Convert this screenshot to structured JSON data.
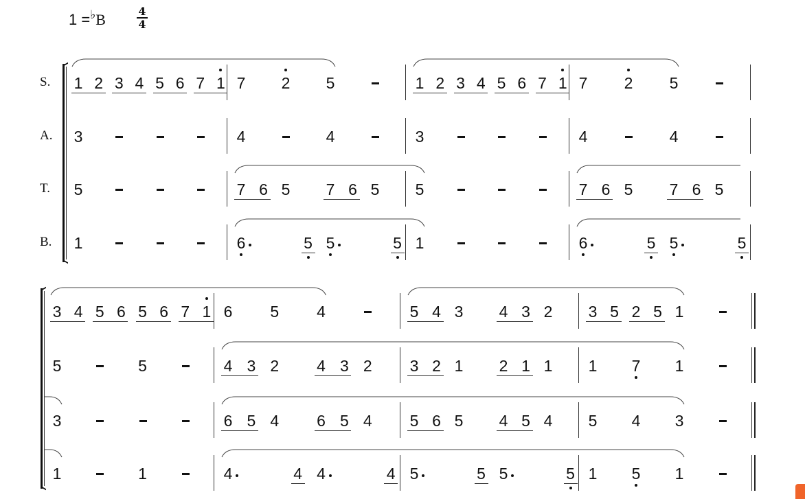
{
  "header": {
    "key_prefix": "1 =",
    "key_flat": "♭",
    "key_note": "B",
    "time_top": "4",
    "time_bottom": "4"
  },
  "parts": [
    "S.",
    "A.",
    "T.",
    "B."
  ],
  "systems": [
    {
      "measures": [
        {
          "S": [
            {
              "t": 0,
              "n": "1",
              "u": 1
            },
            {
              "t": 0.5,
              "n": "2",
              "u": 1
            },
            {
              "t": 1,
              "n": "3",
              "u": 1
            },
            {
              "t": 1.5,
              "n": "4",
              "u": 1
            },
            {
              "t": 2,
              "n": "5",
              "u": 1
            },
            {
              "t": 2.5,
              "n": "6",
              "u": 1
            },
            {
              "t": 3,
              "n": "7",
              "u": 1
            },
            {
              "t": 3.5,
              "n": "1",
              "u": 1,
              "hi": 1
            }
          ],
          "A": [
            {
              "t": 0,
              "n": "3"
            },
            {
              "t": 1,
              "n": "-"
            },
            {
              "t": 2,
              "n": "-"
            },
            {
              "t": 3,
              "n": "-"
            }
          ],
          "T": [
            {
              "t": 0,
              "n": "5"
            },
            {
              "t": 1,
              "n": "-"
            },
            {
              "t": 2,
              "n": "-"
            },
            {
              "t": 3,
              "n": "-"
            }
          ],
          "B": [
            {
              "t": 0,
              "n": "1"
            },
            {
              "t": 1,
              "n": "-"
            },
            {
              "t": 2,
              "n": "-"
            },
            {
              "t": 3,
              "n": "-"
            }
          ]
        },
        {
          "S": [
            {
              "t": 0,
              "n": "7"
            },
            {
              "t": 1,
              "n": "2",
              "hi": 1
            },
            {
              "t": 2,
              "n": "5"
            },
            {
              "t": 3,
              "n": "-"
            }
          ],
          "A": [
            {
              "t": 0,
              "n": "4"
            },
            {
              "t": 1,
              "n": "-"
            },
            {
              "t": 2,
              "n": "4"
            },
            {
              "t": 3,
              "n": "-"
            }
          ],
          "T": [
            {
              "t": 0,
              "n": "7",
              "u": 1
            },
            {
              "t": 0.5,
              "n": "6",
              "u": 1
            },
            {
              "t": 1,
              "n": "5"
            },
            {
              "t": 2,
              "n": "7",
              "u": 1
            },
            {
              "t": 2.5,
              "n": "6",
              "u": 1
            },
            {
              "t": 3,
              "n": "5"
            }
          ],
          "B": [
            {
              "t": 0,
              "n": "6",
              "lo": 1,
              "aug": 1
            },
            {
              "t": 1.5,
              "n": "5",
              "u": 1,
              "lo": 1
            },
            {
              "t": 2,
              "n": "5",
              "lo": 1,
              "aug": 1
            },
            {
              "t": 3.5,
              "n": "5",
              "u": 1,
              "lo": 1
            }
          ]
        },
        {
          "S": [
            {
              "t": 0,
              "n": "1",
              "u": 1
            },
            {
              "t": 0.5,
              "n": "2",
              "u": 1
            },
            {
              "t": 1,
              "n": "3",
              "u": 1
            },
            {
              "t": 1.5,
              "n": "4",
              "u": 1
            },
            {
              "t": 2,
              "n": "5",
              "u": 1
            },
            {
              "t": 2.5,
              "n": "6",
              "u": 1
            },
            {
              "t": 3,
              "n": "7",
              "u": 1
            },
            {
              "t": 3.5,
              "n": "1",
              "u": 1,
              "hi": 1
            }
          ],
          "A": [
            {
              "t": 0,
              "n": "3"
            },
            {
              "t": 1,
              "n": "-"
            },
            {
              "t": 2,
              "n": "-"
            },
            {
              "t": 3,
              "n": "-"
            }
          ],
          "T": [
            {
              "t": 0,
              "n": "5"
            },
            {
              "t": 1,
              "n": "-"
            },
            {
              "t": 2,
              "n": "-"
            },
            {
              "t": 3,
              "n": "-"
            }
          ],
          "B": [
            {
              "t": 0,
              "n": "1"
            },
            {
              "t": 1,
              "n": "-"
            },
            {
              "t": 2,
              "n": "-"
            },
            {
              "t": 3,
              "n": "-"
            }
          ]
        },
        {
          "S": [
            {
              "t": 0,
              "n": "7"
            },
            {
              "t": 1,
              "n": "2",
              "hi": 1
            },
            {
              "t": 2,
              "n": "5"
            },
            {
              "t": 3,
              "n": "-"
            }
          ],
          "A": [
            {
              "t": 0,
              "n": "4"
            },
            {
              "t": 1,
              "n": "-"
            },
            {
              "t": 2,
              "n": "4"
            },
            {
              "t": 3,
              "n": "-"
            }
          ],
          "T": [
            {
              "t": 0,
              "n": "7",
              "u": 1
            },
            {
              "t": 0.5,
              "n": "6",
              "u": 1
            },
            {
              "t": 1,
              "n": "5"
            },
            {
              "t": 2,
              "n": "7",
              "u": 1
            },
            {
              "t": 2.5,
              "n": "6",
              "u": 1
            },
            {
              "t": 3,
              "n": "5"
            }
          ],
          "B": [
            {
              "t": 0,
              "n": "6",
              "lo": 1,
              "aug": 1
            },
            {
              "t": 1.5,
              "n": "5",
              "u": 1,
              "lo": 1
            },
            {
              "t": 2,
              "n": "5",
              "lo": 1,
              "aug": 1
            },
            {
              "t": 3.5,
              "n": "5",
              "u": 1,
              "lo": 1
            }
          ]
        }
      ],
      "slurs": [
        {
          "part": "S",
          "from": [
            0,
            0
          ],
          "to": [
            1,
            2
          ]
        },
        {
          "part": "S",
          "from": [
            2,
            0
          ],
          "to": [
            3,
            2
          ]
        },
        {
          "part": "T",
          "from": [
            1,
            0
          ],
          "to": [
            2,
            0
          ]
        },
        {
          "part": "T",
          "from": [
            3,
            0
          ],
          "to": "open"
        },
        {
          "part": "B",
          "from": [
            1,
            0
          ],
          "to": [
            2,
            0
          ]
        },
        {
          "part": "B",
          "from": [
            3,
            0
          ],
          "to": "open"
        }
      ],
      "final": false
    },
    {
      "measures": [
        {
          "S": [
            {
              "t": 0,
              "n": "3",
              "u": 1
            },
            {
              "t": 0.5,
              "n": "4",
              "u": 1
            },
            {
              "t": 1,
              "n": "5",
              "u": 1
            },
            {
              "t": 1.5,
              "n": "6",
              "u": 1
            },
            {
              "t": 2,
              "n": "5",
              "u": 1
            },
            {
              "t": 2.5,
              "n": "6",
              "u": 1
            },
            {
              "t": 3,
              "n": "7",
              "u": 1
            },
            {
              "t": 3.5,
              "n": "1",
              "u": 1,
              "hi": 1
            }
          ],
          "A": [
            {
              "t": 0,
              "n": "5"
            },
            {
              "t": 1,
              "n": "-"
            },
            {
              "t": 2,
              "n": "5"
            },
            {
              "t": 3,
              "n": "-"
            }
          ],
          "T": [
            {
              "t": 0,
              "n": "3"
            },
            {
              "t": 1,
              "n": "-"
            },
            {
              "t": 2,
              "n": "-"
            },
            {
              "t": 3,
              "n": "-"
            }
          ],
          "B": [
            {
              "t": 0,
              "n": "1"
            },
            {
              "t": 1,
              "n": "-"
            },
            {
              "t": 2,
              "n": "1"
            },
            {
              "t": 3,
              "n": "-"
            }
          ]
        },
        {
          "S": [
            {
              "t": 0,
              "n": "6"
            },
            {
              "t": 1,
              "n": "5"
            },
            {
              "t": 2,
              "n": "4"
            },
            {
              "t": 3,
              "n": "-"
            }
          ],
          "A": [
            {
              "t": 0,
              "n": "4",
              "u": 1
            },
            {
              "t": 0.5,
              "n": "3",
              "u": 1
            },
            {
              "t": 1,
              "n": "2"
            },
            {
              "t": 2,
              "n": "4",
              "u": 1
            },
            {
              "t": 2.5,
              "n": "3",
              "u": 1
            },
            {
              "t": 3,
              "n": "2"
            }
          ],
          "T": [
            {
              "t": 0,
              "n": "6",
              "u": 1
            },
            {
              "t": 0.5,
              "n": "5",
              "u": 1
            },
            {
              "t": 1,
              "n": "4"
            },
            {
              "t": 2,
              "n": "6",
              "u": 1
            },
            {
              "t": 2.5,
              "n": "5",
              "u": 1
            },
            {
              "t": 3,
              "n": "4"
            }
          ],
          "B": [
            {
              "t": 0,
              "n": "4",
              "aug": 1
            },
            {
              "t": 1.5,
              "n": "4",
              "u": 1
            },
            {
              "t": 2,
              "n": "4",
              "aug": 1
            },
            {
              "t": 3.5,
              "n": "4",
              "u": 1
            }
          ]
        },
        {
          "S": [
            {
              "t": 0,
              "n": "5",
              "u": 1
            },
            {
              "t": 0.5,
              "n": "4",
              "u": 1
            },
            {
              "t": 1,
              "n": "3"
            },
            {
              "t": 2,
              "n": "4",
              "u": 1
            },
            {
              "t": 2.5,
              "n": "3",
              "u": 1
            },
            {
              "t": 3,
              "n": "2"
            }
          ],
          "A": [
            {
              "t": 0,
              "n": "3",
              "u": 1
            },
            {
              "t": 0.5,
              "n": "2",
              "u": 1
            },
            {
              "t": 1,
              "n": "1"
            },
            {
              "t": 2,
              "n": "2",
              "u": 1
            },
            {
              "t": 2.5,
              "n": "1",
              "u": 1
            },
            {
              "t": 3,
              "n": "1"
            }
          ],
          "T": [
            {
              "t": 0,
              "n": "5",
              "u": 1
            },
            {
              "t": 0.5,
              "n": "6",
              "u": 1
            },
            {
              "t": 1,
              "n": "5"
            },
            {
              "t": 2,
              "n": "4",
              "u": 1
            },
            {
              "t": 2.5,
              "n": "5",
              "u": 1
            },
            {
              "t": 3,
              "n": "4"
            }
          ],
          "B": [
            {
              "t": 0,
              "n": "5",
              "aug": 1
            },
            {
              "t": 1.5,
              "n": "5",
              "u": 1
            },
            {
              "t": 2,
              "n": "5",
              "aug": 1
            },
            {
              "t": 3.5,
              "n": "5",
              "u": 1,
              "lo": 1
            }
          ]
        },
        {
          "S": [
            {
              "t": 0,
              "n": "3",
              "u": 1
            },
            {
              "t": 0.5,
              "n": "5",
              "u": 1
            },
            {
              "t": 1,
              "n": "2",
              "u": 1
            },
            {
              "t": 1.5,
              "n": "5",
              "u": 1
            },
            {
              "t": 2,
              "n": "1"
            },
            {
              "t": 3,
              "n": "-"
            }
          ],
          "A": [
            {
              "t": 0,
              "n": "1"
            },
            {
              "t": 1,
              "n": "7",
              "lo": 1
            },
            {
              "t": 2,
              "n": "1"
            },
            {
              "t": 3,
              "n": "-"
            }
          ],
          "T": [
            {
              "t": 0,
              "n": "5"
            },
            {
              "t": 1,
              "n": "4"
            },
            {
              "t": 2,
              "n": "3"
            },
            {
              "t": 3,
              "n": "-"
            }
          ],
          "B": [
            {
              "t": 0,
              "n": "1"
            },
            {
              "t": 1,
              "n": "5",
              "lo": 1
            },
            {
              "t": 2,
              "n": "1"
            },
            {
              "t": 3,
              "n": "-"
            }
          ]
        }
      ],
      "slurs": [
        {
          "part": "S",
          "from": [
            0,
            0
          ],
          "to": [
            1,
            2
          ]
        },
        {
          "part": "S",
          "from": [
            2,
            0
          ],
          "to": [
            3,
            2
          ]
        },
        {
          "part": "A",
          "from": [
            1,
            0
          ],
          "to": [
            3,
            2
          ]
        },
        {
          "part": "T",
          "from": "open",
          "to": [
            0,
            0
          ]
        },
        {
          "part": "T",
          "from": [
            1,
            0
          ],
          "to": [
            3,
            2
          ]
        },
        {
          "part": "B",
          "from": "open",
          "to": [
            0,
            0
          ]
        },
        {
          "part": "B",
          "from": [
            1,
            0
          ],
          "to": [
            3,
            2
          ]
        }
      ],
      "final": true
    }
  ]
}
